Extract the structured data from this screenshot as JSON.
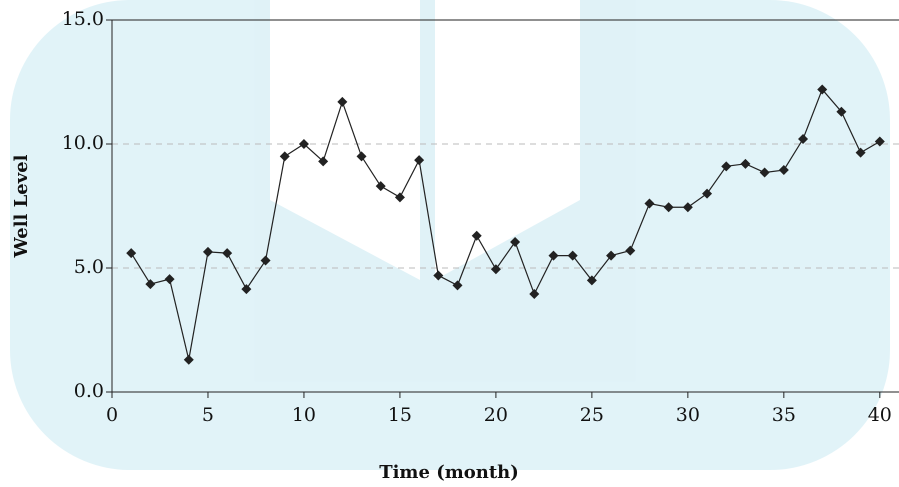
{
  "chart_data": {
    "type": "line",
    "x_label": "Time (month)",
    "y_label": "Well Level",
    "x": [
      1,
      2,
      3,
      4,
      5,
      6,
      7,
      8,
      9,
      10,
      11,
      12,
      13,
      14,
      15,
      16,
      17,
      18,
      19,
      20,
      21,
      22,
      23,
      24,
      25,
      26,
      27,
      28,
      29,
      30,
      31,
      32,
      33,
      34,
      35,
      36,
      37,
      38,
      39,
      40
    ],
    "series": [
      {
        "name": "Well Level",
        "color": "#222222",
        "values": [
          5.6,
          4.35,
          4.55,
          1.3,
          5.65,
          5.6,
          4.15,
          5.3,
          9.5,
          10.0,
          9.3,
          11.7,
          9.5,
          8.3,
          7.85,
          9.35,
          4.7,
          4.3,
          6.3,
          4.95,
          6.05,
          3.95,
          5.5,
          5.5,
          4.5,
          5.5,
          5.7,
          7.6,
          7.45,
          7.45,
          8.0,
          9.1,
          9.2,
          8.85,
          8.95,
          10.2,
          12.2,
          11.3,
          9.65,
          10.1
        ]
      }
    ],
    "xlim": [
      0,
      41
    ],
    "xticks": [
      0,
      5,
      10,
      15,
      20,
      25,
      30,
      35,
      40
    ],
    "ylim": [
      0,
      15
    ],
    "yticks": [
      {
        "value": 0,
        "label": "0.0"
      },
      {
        "value": 5,
        "label": "5.0"
      },
      {
        "value": 10,
        "label": "10.0"
      },
      {
        "value": 15,
        "label": "15.0"
      }
    ],
    "grid": true
  }
}
